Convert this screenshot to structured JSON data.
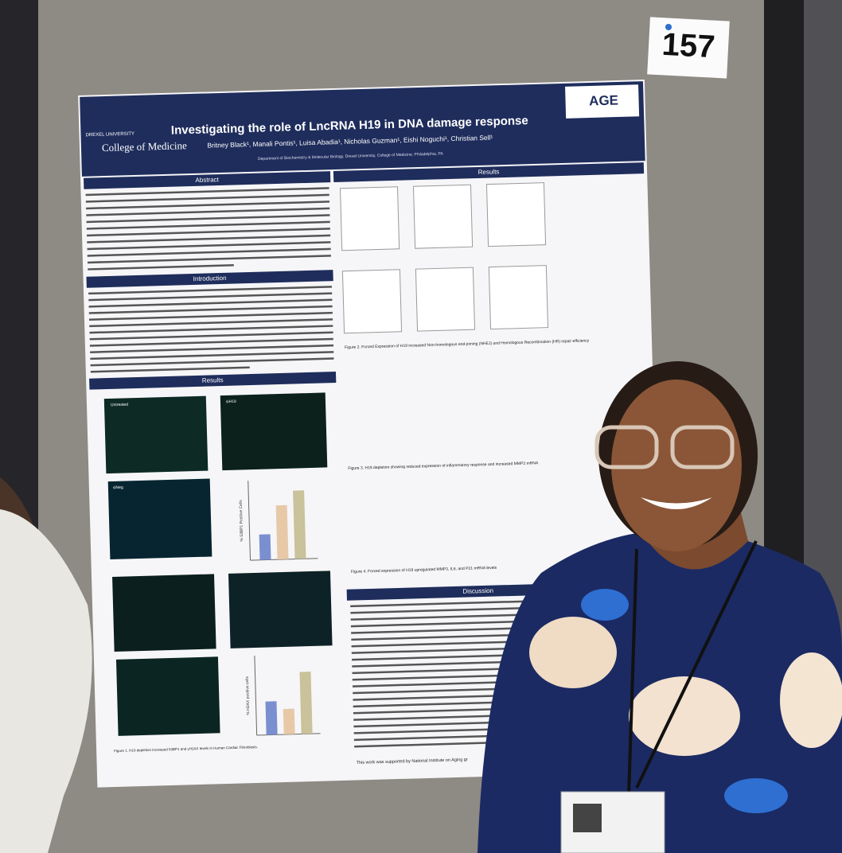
{
  "board_number": "157",
  "poster": {
    "title": "Investigating the role of LncRNA H19 in DNA damage response",
    "authors": "Britney Black¹, Manali Pontis¹, Luisa Abadia¹, Nicholas Guzman¹, Eishi Noguchi¹, Christian Sell¹",
    "affiliation": "Department of Biochemistry & Molecular Biology, Drexel University, College of Medicine, Philadelphia, PA",
    "university": "DREXEL UNIVERSITY",
    "college": "College of Medicine",
    "logo": "AGE",
    "sections": {
      "abstract": "Abstract",
      "introduction": "Introduction",
      "results_left": "Results",
      "results_right": "Results",
      "discussion": "Discussion"
    },
    "figure_labels": {
      "untreated": "Untreated",
      "sih19": "siH19",
      "sineg": "siNeg",
      "y1": "% 53BP1 Positive Cells",
      "y2": "% H2AX positive cells"
    },
    "captions": {
      "fig1": "Figure 1. H19 depletion increased 53BP1 and γH2AX levels in Human Cardiac Fibroblasts.",
      "fig2": "Figure 2. Forced Expression of H19 increased Non-homologous end-joining (NHEJ) and Homologous Recombination (HR) repair efficiency",
      "fig3": "Figure 3. H19 depletion showing reduced expression of inflammatory response and increased MMP3 mRNA",
      "fig4": "Figure 4. Forced expression of H19 upregulated MMP3, IL6, and P21 mRNA levels"
    },
    "acknowledgement": "This work was supported by National Institute on Aging gr"
  }
}
